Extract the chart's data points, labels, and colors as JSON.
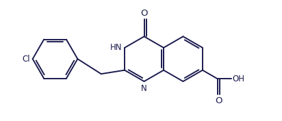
{
  "bg": "#ffffff",
  "lc": "#1a1a4e",
  "lw": 1.4,
  "fs": 8.5,
  "figsize": [
    4.12,
    1.77
  ],
  "dpi": 100,
  "xlim": [
    -0.5,
    8.5
  ],
  "ylim": [
    -0.3,
    3.2
  ]
}
